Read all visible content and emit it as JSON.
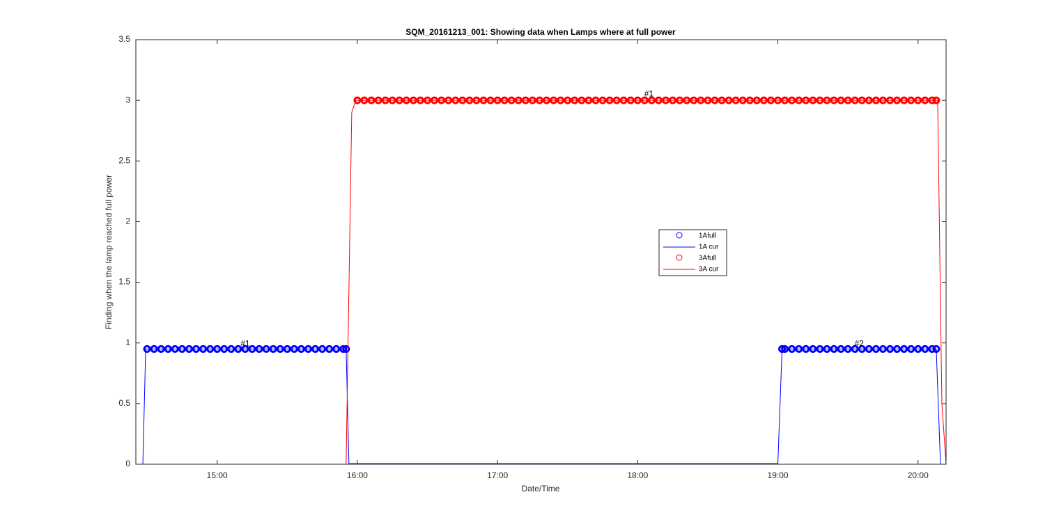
{
  "chart_data": {
    "type": "line",
    "title": "SQM_20161213_001: Showing data when Lamps where at full power",
    "x_label": "Date/Time",
    "y_label": "Finding when the lamp reached full power",
    "xlim": [
      14.42,
      20.2
    ],
    "ylim": [
      0,
      3.5
    ],
    "xticks": [
      {
        "value": 15,
        "label": "15:00"
      },
      {
        "value": 16,
        "label": "16:00"
      },
      {
        "value": 17,
        "label": "17:00"
      },
      {
        "value": 18,
        "label": "18:00"
      },
      {
        "value": 19,
        "label": "19:00"
      },
      {
        "value": 20,
        "label": "20:00"
      }
    ],
    "yticks": [
      0,
      0.5,
      1,
      1.5,
      2,
      2.5,
      3,
      3.5
    ],
    "grid": false,
    "legend": "center-right",
    "series": [
      {
        "name": "1Afull",
        "style": "marker",
        "color": "#0000ff",
        "x": [
          14.5,
          14.55,
          14.6,
          14.65,
          14.7,
          14.75,
          14.8,
          14.85,
          14.9,
          14.95,
          15,
          15.05,
          15.1,
          15.15,
          15.2,
          15.25,
          15.3,
          15.35,
          15.4,
          15.45,
          15.5,
          15.55,
          15.6,
          15.65,
          15.7,
          15.75,
          15.8,
          15.85,
          15.9,
          15.92,
          19.03,
          19.05,
          19.1,
          19.15,
          19.2,
          19.25,
          19.3,
          19.35,
          19.4,
          19.45,
          19.5,
          19.55,
          19.6,
          19.65,
          19.7,
          19.75,
          19.8,
          19.85,
          19.9,
          19.95,
          20,
          20.05,
          20.1,
          20.13
        ],
        "values": [
          0.95,
          0.95,
          0.95,
          0.95,
          0.95,
          0.95,
          0.95,
          0.95,
          0.95,
          0.95,
          0.95,
          0.95,
          0.95,
          0.95,
          0.95,
          0.95,
          0.95,
          0.95,
          0.95,
          0.95,
          0.95,
          0.95,
          0.95,
          0.95,
          0.95,
          0.95,
          0.95,
          0.95,
          0.95,
          0.95,
          0.95,
          0.95,
          0.95,
          0.95,
          0.95,
          0.95,
          0.95,
          0.95,
          0.95,
          0.95,
          0.95,
          0.95,
          0.95,
          0.95,
          0.95,
          0.95,
          0.95,
          0.95,
          0.95,
          0.95,
          0.95,
          0.95,
          0.95,
          0.95
        ]
      },
      {
        "name": "1A cur",
        "style": "line",
        "color": "#0000ff",
        "x": [
          14.42,
          14.47,
          14.49,
          15.92,
          15.94,
          19.0,
          19.03,
          20.13,
          20.16,
          20.2
        ],
        "values": [
          0,
          0,
          0.95,
          0.95,
          0.005,
          0.005,
          0.95,
          0.95,
          0,
          0
        ]
      },
      {
        "name": "3Afull",
        "style": "marker",
        "color": "#ff0000",
        "x": [
          16,
          16.05,
          16.1,
          16.15,
          16.2,
          16.25,
          16.3,
          16.35,
          16.4,
          16.45,
          16.5,
          16.55,
          16.6,
          16.65,
          16.7,
          16.75,
          16.8,
          16.85,
          16.9,
          16.95,
          17,
          17.05,
          17.1,
          17.15,
          17.2,
          17.25,
          17.3,
          17.35,
          17.4,
          17.45,
          17.5,
          17.55,
          17.6,
          17.65,
          17.7,
          17.75,
          17.8,
          17.85,
          17.9,
          17.95,
          18,
          18.05,
          18.1,
          18.15,
          18.2,
          18.25,
          18.3,
          18.35,
          18.4,
          18.45,
          18.5,
          18.55,
          18.6,
          18.65,
          18.7,
          18.75,
          18.8,
          18.85,
          18.9,
          18.95,
          19,
          19.05,
          19.1,
          19.15,
          19.2,
          19.25,
          19.3,
          19.35,
          19.4,
          19.45,
          19.5,
          19.55,
          19.6,
          19.65,
          19.7,
          19.75,
          19.8,
          19.85,
          19.9,
          19.95,
          20,
          20.05,
          20.1,
          20.13
        ],
        "values": [
          3,
          3,
          3,
          3,
          3,
          3,
          3,
          3,
          3,
          3,
          3,
          3,
          3,
          3,
          3,
          3,
          3,
          3,
          3,
          3,
          3,
          3,
          3,
          3,
          3,
          3,
          3,
          3,
          3,
          3,
          3,
          3,
          3,
          3,
          3,
          3,
          3,
          3,
          3,
          3,
          3,
          3,
          3,
          3,
          3,
          3,
          3,
          3,
          3,
          3,
          3,
          3,
          3,
          3,
          3,
          3,
          3,
          3,
          3,
          3,
          3,
          3,
          3,
          3,
          3,
          3,
          3,
          3,
          3,
          3,
          3,
          3,
          3,
          3,
          3,
          3,
          3,
          3,
          3,
          3,
          3,
          3,
          3,
          3
        ]
      },
      {
        "name": "3A cur",
        "style": "line",
        "color": "#ff0000",
        "x": [
          14.42,
          15.92,
          15.96,
          15.99,
          20.14,
          20.17,
          20.2
        ],
        "values": [
          0,
          0,
          2.9,
          3,
          3,
          0.5,
          0
        ]
      }
    ],
    "annotations": [
      {
        "text": "#1",
        "x": 15.2,
        "y": 0.99
      },
      {
        "text": "#1",
        "x": 18.08,
        "y": 3.05
      },
      {
        "text": "#2",
        "x": 19.58,
        "y": 0.99
      }
    ]
  }
}
